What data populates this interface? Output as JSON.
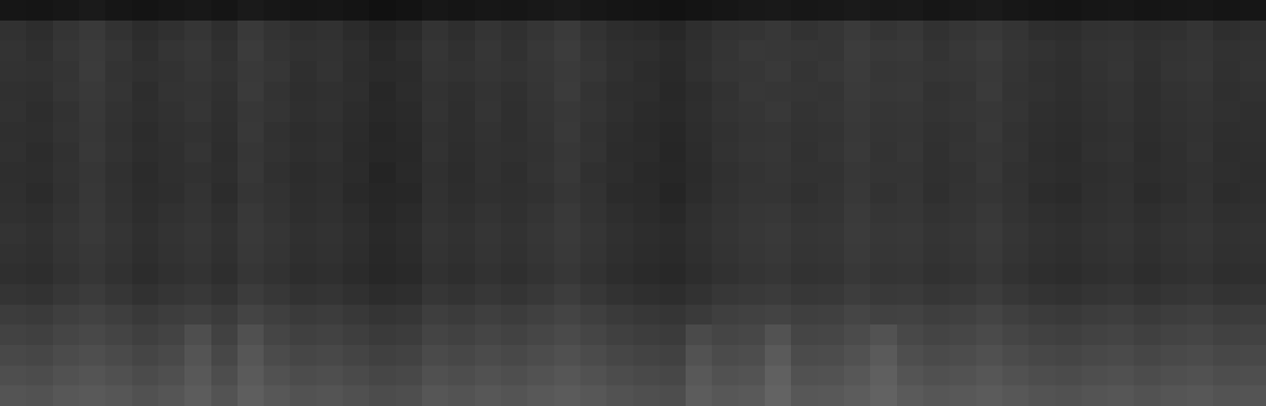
{
  "chart_data": {
    "type": "heatmap",
    "zlim": [
      0,
      255
    ],
    "tick_labels": false,
    "cells": [
      [
        22,
        21,
        23,
        26,
        22,
        20,
        22,
        24,
        21,
        26,
        23,
        21,
        22,
        20,
        17,
        19,
        23,
        21,
        23,
        22,
        24,
        26,
        23,
        21,
        20,
        18,
        20,
        22,
        24,
        25,
        23,
        24,
        26,
        24,
        25,
        22,
        24,
        26,
        23,
        21,
        20,
        22,
        23,
        21,
        22,
        23,
        21,
        22
      ],
      [
        49,
        45,
        52,
        57,
        50,
        44,
        48,
        53,
        46,
        57,
        51,
        47,
        49,
        43,
        38,
        42,
        51,
        46,
        52,
        48,
        53,
        58,
        50,
        45,
        43,
        39,
        46,
        51,
        52,
        55,
        50,
        53,
        58,
        52,
        55,
        49,
        53,
        56,
        52,
        46,
        45,
        49,
        50,
        47,
        48,
        52,
        46,
        48
      ],
      [
        51,
        47,
        54,
        58,
        53,
        46,
        52,
        55,
        48,
        59,
        52,
        49,
        50,
        46,
        40,
        45,
        53,
        48,
        54,
        49,
        55,
        60,
        52,
        47,
        46,
        42,
        47,
        52,
        56,
        55,
        54,
        53,
        60,
        56,
        57,
        51,
        55,
        59,
        53,
        50,
        47,
        51,
        52,
        48,
        51,
        53,
        49,
        50
      ],
      [
        50,
        49,
        52,
        59,
        51,
        48,
        50,
        54,
        50,
        57,
        54,
        47,
        51,
        45,
        42,
        43,
        52,
        50,
        53,
        51,
        54,
        58,
        54,
        48,
        44,
        41,
        48,
        53,
        54,
        57,
        52,
        55,
        59,
        54,
        55,
        53,
        54,
        57,
        52,
        48,
        46,
        50,
        53,
        47,
        52,
        54,
        48,
        51
      ],
      [
        48,
        47,
        53,
        57,
        52,
        45,
        51,
        52,
        48,
        58,
        51,
        46,
        48,
        46,
        39,
        44,
        50,
        47,
        51,
        48,
        53,
        59,
        51,
        46,
        45,
        40,
        45,
        50,
        55,
        54,
        53,
        52,
        58,
        55,
        56,
        50,
        52,
        58,
        51,
        49,
        46,
        49,
        51,
        46,
        50,
        52,
        47,
        49
      ],
      [
        49,
        45,
        50,
        56,
        50,
        46,
        49,
        53,
        47,
        55,
        52,
        47,
        49,
        44,
        40,
        42,
        51,
        46,
        52,
        47,
        52,
        56,
        52,
        47,
        43,
        41,
        46,
        51,
        53,
        56,
        51,
        53,
        57,
        53,
        54,
        51,
        53,
        55,
        52,
        47,
        45,
        48,
        51,
        46,
        49,
        51,
        48,
        47
      ],
      [
        47,
        46,
        51,
        55,
        49,
        44,
        48,
        50,
        46,
        56,
        49,
        45,
        47,
        43,
        38,
        41,
        49,
        46,
        50,
        47,
        51,
        57,
        50,
        45,
        42,
        39,
        45,
        49,
        52,
        53,
        50,
        51,
        56,
        52,
        53,
        49,
        51,
        56,
        50,
        46,
        44,
        47,
        49,
        45,
        48,
        50,
        46,
        47
      ],
      [
        48,
        44,
        49,
        56,
        50,
        45,
        47,
        52,
        45,
        54,
        50,
        46,
        48,
        42,
        39,
        40,
        50,
        45,
        49,
        48,
        50,
        55,
        51,
        44,
        43,
        38,
        44,
        50,
        53,
        54,
        49,
        52,
        57,
        51,
        54,
        48,
        52,
        54,
        51,
        45,
        43,
        48,
        50,
        44,
        47,
        51,
        45,
        46
      ],
      [
        46,
        45,
        50,
        54,
        48,
        43,
        47,
        49,
        46,
        55,
        48,
        44,
        46,
        43,
        36,
        41,
        48,
        44,
        49,
        46,
        51,
        56,
        48,
        45,
        41,
        39,
        43,
        48,
        51,
        53,
        50,
        50,
        55,
        52,
        52,
        48,
        50,
        55,
        49,
        46,
        44,
        46,
        48,
        45,
        47,
        49,
        46,
        45
      ],
      [
        47,
        43,
        49,
        55,
        49,
        44,
        46,
        51,
        44,
        53,
        50,
        45,
        47,
        41,
        38,
        39,
        49,
        45,
        48,
        47,
        49,
        54,
        50,
        43,
        42,
        37,
        44,
        49,
        52,
        52,
        48,
        51,
        56,
        50,
        53,
        47,
        51,
        53,
        50,
        44,
        42,
        47,
        49,
        43,
        46,
        50,
        44,
        46
      ],
      [
        48,
        46,
        51,
        56,
        50,
        45,
        49,
        52,
        47,
        56,
        51,
        46,
        48,
        44,
        39,
        42,
        50,
        47,
        51,
        48,
        52,
        57,
        51,
        46,
        43,
        40,
        47,
        51,
        54,
        55,
        51,
        52,
        58,
        53,
        54,
        50,
        52,
        56,
        51,
        47,
        45,
        48,
        50,
        46,
        49,
        51,
        47,
        48
      ],
      [
        51,
        48,
        53,
        57,
        52,
        47,
        51,
        54,
        49,
        57,
        53,
        48,
        50,
        46,
        41,
        44,
        52,
        49,
        53,
        50,
        54,
        58,
        53,
        48,
        45,
        43,
        48,
        52,
        55,
        57,
        53,
        54,
        59,
        55,
        56,
        52,
        54,
        58,
        53,
        49,
        47,
        50,
        52,
        48,
        51,
        53,
        49,
        50
      ],
      [
        49,
        47,
        52,
        55,
        51,
        46,
        50,
        53,
        48,
        56,
        52,
        47,
        49,
        45,
        40,
        43,
        51,
        48,
        52,
        49,
        53,
        57,
        52,
        47,
        44,
        42,
        47,
        51,
        54,
        56,
        52,
        53,
        58,
        54,
        55,
        51,
        53,
        57,
        52,
        48,
        46,
        49,
        51,
        47,
        50,
        52,
        48,
        49
      ],
      [
        47,
        45,
        50,
        54,
        49,
        44,
        48,
        51,
        46,
        54,
        50,
        45,
        47,
        43,
        39,
        41,
        49,
        46,
        50,
        47,
        51,
        55,
        50,
        45,
        42,
        40,
        45,
        49,
        52,
        54,
        50,
        51,
        56,
        52,
        53,
        49,
        51,
        55,
        50,
        46,
        44,
        47,
        49,
        45,
        48,
        50,
        46,
        47
      ],
      [
        52,
        50,
        55,
        59,
        54,
        49,
        53,
        56,
        51,
        60,
        55,
        50,
        52,
        48,
        44,
        46,
        54,
        51,
        55,
        52,
        56,
        61,
        55,
        50,
        47,
        45,
        50,
        55,
        57,
        59,
        55,
        56,
        61,
        57,
        58,
        54,
        56,
        60,
        55,
        51,
        49,
        52,
        54,
        50,
        53,
        55,
        51,
        52
      ],
      [
        60,
        58,
        63,
        66,
        62,
        57,
        61,
        64,
        59,
        68,
        63,
        58,
        60,
        56,
        52,
        54,
        62,
        59,
        63,
        60,
        64,
        68,
        63,
        58,
        55,
        53,
        58,
        63,
        65,
        67,
        63,
        64,
        69,
        65,
        66,
        62,
        64,
        68,
        63,
        59,
        57,
        60,
        62,
        58,
        61,
        63,
        59,
        60
      ],
      [
        66,
        64,
        69,
        72,
        68,
        63,
        67,
        78,
        65,
        80,
        69,
        64,
        66,
        62,
        58,
        60,
        68,
        65,
        69,
        66,
        70,
        74,
        69,
        64,
        61,
        59,
        74,
        69,
        71,
        82,
        69,
        70,
        75,
        82,
        72,
        68,
        70,
        74,
        69,
        65,
        63,
        66,
        68,
        64,
        67,
        69,
        65,
        66
      ],
      [
        72,
        70,
        75,
        78,
        74,
        69,
        73,
        84,
        71,
        86,
        75,
        70,
        72,
        68,
        64,
        66,
        74,
        71,
        75,
        72,
        76,
        80,
        75,
        70,
        67,
        65,
        82,
        75,
        77,
        90,
        75,
        76,
        81,
        90,
        78,
        74,
        76,
        80,
        75,
        71,
        69,
        72,
        74,
        70,
        73,
        75,
        71,
        72
      ],
      [
        78,
        76,
        81,
        84,
        80,
        75,
        79,
        88,
        77,
        90,
        81,
        76,
        78,
        74,
        70,
        72,
        80,
        77,
        81,
        78,
        82,
        86,
        81,
        76,
        73,
        71,
        88,
        81,
        83,
        96,
        81,
        82,
        87,
        95,
        84,
        80,
        82,
        86,
        81,
        77,
        75,
        78,
        80,
        76,
        79,
        81,
        77,
        78
      ],
      [
        84,
        82,
        87,
        89,
        86,
        81,
        85,
        92,
        83,
        94,
        87,
        82,
        84,
        80,
        76,
        78,
        86,
        83,
        87,
        84,
        88,
        91,
        87,
        82,
        79,
        77,
        92,
        87,
        89,
        99,
        87,
        88,
        92,
        98,
        90,
        86,
        88,
        91,
        87,
        83,
        81,
        84,
        86,
        82,
        85,
        87,
        83,
        84
      ]
    ]
  }
}
